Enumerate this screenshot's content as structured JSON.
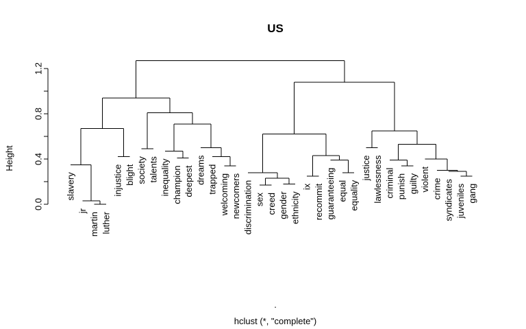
{
  "chart_data": {
    "type": "dendrogram",
    "title": "US",
    "ylabel": "Height",
    "xlabel": "hclust (*, \"complete\")",
    "sub": ".",
    "ylim": [
      0,
      1.2
    ],
    "yticks": [
      0.0,
      0.4,
      0.8,
      1.2
    ],
    "ytick_labels": [
      "0.0",
      "0.4",
      "0.8",
      "1.2"
    ],
    "leaves": [
      "slavery",
      "jr",
      "martin",
      "luther",
      "injustice",
      "blight",
      "society",
      "talents",
      "inequality",
      "champion",
      "deepest",
      "dreams",
      "trapped",
      "welcoming",
      "newcomers",
      "discrimination",
      "sex",
      "creed",
      "gender",
      "ethnicity",
      "ix",
      "recommit",
      "guaranteeing",
      "equal",
      "equality",
      "justice",
      "lawlessness",
      "criminal",
      "punish",
      "guilty",
      "violent",
      "crime",
      "syndicates",
      "juveniles",
      "gang"
    ],
    "leaf_heights": [
      0.35,
      0.03,
      0.0,
      0.0,
      0.42,
      0.42,
      0.49,
      0.49,
      0.47,
      0.41,
      0.41,
      0.5,
      0.42,
      0.34,
      0.34,
      0.28,
      0.17,
      0.17,
      0.18,
      0.18,
      0.25,
      0.25,
      0.39,
      0.28,
      0.28,
      0.5,
      0.5,
      0.39,
      0.34,
      0.34,
      0.4,
      0.3,
      0.29,
      0.25,
      0.25
    ],
    "merges": [
      {
        "a": {
          "leaf": 2
        },
        "b": {
          "leaf": 3
        },
        "h": 0.0
      },
      {
        "a": {
          "leaf": 1
        },
        "b": {
          "merge": 0
        },
        "h": 0.03
      },
      {
        "a": {
          "leaf": 0
        },
        "b": {
          "merge": 1
        },
        "h": 0.35
      },
      {
        "a": {
          "leaf": 4
        },
        "b": {
          "leaf": 5
        },
        "h": 0.42
      },
      {
        "a": {
          "merge": 2
        },
        "b": {
          "merge": 3
        },
        "h": 0.67
      },
      {
        "a": {
          "leaf": 6
        },
        "b": {
          "leaf": 7
        },
        "h": 0.49
      },
      {
        "a": {
          "leaf": 9
        },
        "b": {
          "leaf": 10
        },
        "h": 0.41
      },
      {
        "a": {
          "leaf": 8
        },
        "b": {
          "merge": 6
        },
        "h": 0.47
      },
      {
        "a": {
          "leaf": 13
        },
        "b": {
          "leaf": 14
        },
        "h": 0.34
      },
      {
        "a": {
          "leaf": 12
        },
        "b": {
          "merge": 8
        },
        "h": 0.42
      },
      {
        "a": {
          "leaf": 11
        },
        "b": {
          "merge": 9
        },
        "h": 0.5
      },
      {
        "a": {
          "merge": 7
        },
        "b": {
          "merge": 10
        },
        "h": 0.71
      },
      {
        "a": {
          "merge": 5
        },
        "b": {
          "merge": 11
        },
        "h": 0.81
      },
      {
        "a": {
          "merge": 4
        },
        "b": {
          "merge": 12
        },
        "h": 0.94
      },
      {
        "a": {
          "leaf": 16
        },
        "b": {
          "leaf": 17
        },
        "h": 0.17
      },
      {
        "a": {
          "leaf": 18
        },
        "b": {
          "leaf": 19
        },
        "h": 0.18
      },
      {
        "a": {
          "merge": 14
        },
        "b": {
          "merge": 15
        },
        "h": 0.23
      },
      {
        "a": {
          "leaf": 15
        },
        "b": {
          "merge": 16
        },
        "h": 0.28
      },
      {
        "a": {
          "leaf": 20
        },
        "b": {
          "leaf": 21
        },
        "h": 0.25
      },
      {
        "a": {
          "leaf": 23
        },
        "b": {
          "leaf": 24
        },
        "h": 0.28
      },
      {
        "a": {
          "leaf": 22
        },
        "b": {
          "merge": 19
        },
        "h": 0.39
      },
      {
        "a": {
          "merge": 18
        },
        "b": {
          "merge": 20
        },
        "h": 0.43
      },
      {
        "a": {
          "merge": 17
        },
        "b": {
          "merge": 21
        },
        "h": 0.62
      },
      {
        "a": {
          "leaf": 25
        },
        "b": {
          "leaf": 26
        },
        "h": 0.5
      },
      {
        "a": {
          "leaf": 28
        },
        "b": {
          "leaf": 29
        },
        "h": 0.34
      },
      {
        "a": {
          "leaf": 27
        },
        "b": {
          "merge": 24
        },
        "h": 0.39
      },
      {
        "a": {
          "leaf": 33
        },
        "b": {
          "leaf": 34
        },
        "h": 0.25
      },
      {
        "a": {
          "leaf": 32
        },
        "b": {
          "merge": 26
        },
        "h": 0.29
      },
      {
        "a": {
          "leaf": 31
        },
        "b": {
          "merge": 27
        },
        "h": 0.3
      },
      {
        "a": {
          "leaf": 30
        },
        "b": {
          "merge": 28
        },
        "h": 0.4
      },
      {
        "a": {
          "merge": 25
        },
        "b": {
          "merge": 29
        },
        "h": 0.53
      },
      {
        "a": {
          "merge": 23
        },
        "b": {
          "merge": 30
        },
        "h": 0.65
      },
      {
        "a": {
          "merge": 22
        },
        "b": {
          "merge": 31
        },
        "h": 1.08
      },
      {
        "a": {
          "merge": 13
        },
        "b": {
          "merge": 32
        },
        "h": 1.27
      }
    ]
  }
}
